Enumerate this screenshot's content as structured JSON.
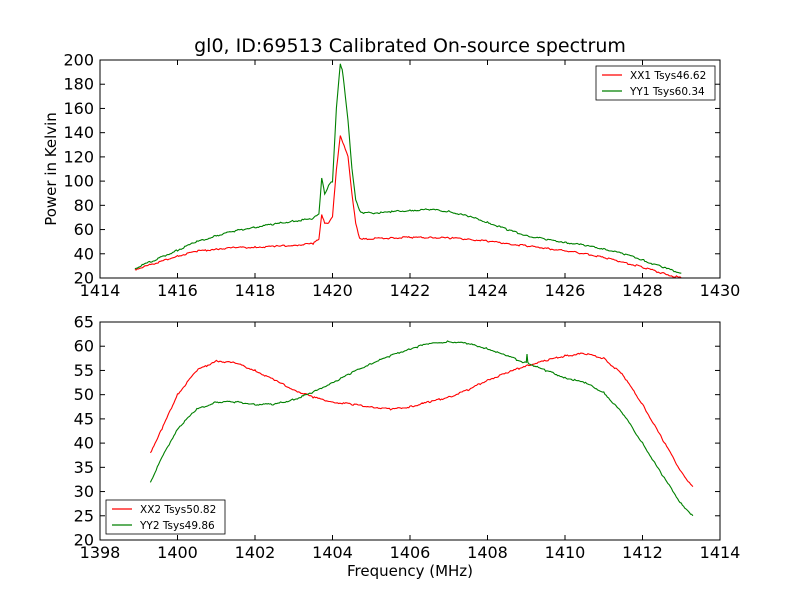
{
  "chart_data": [
    {
      "type": "line",
      "title": "gl0, ID:69513 Calibrated On-source spectrum",
      "xlabel": "",
      "ylabel": "Power in Kelvin",
      "xlim": [
        1414,
        1430
      ],
      "ylim": [
        20,
        200
      ],
      "xticks": [
        1414,
        1416,
        1418,
        1420,
        1422,
        1424,
        1426,
        1428,
        1430
      ],
      "yticks": [
        20,
        40,
        60,
        80,
        100,
        120,
        140,
        160,
        180,
        200
      ],
      "legend": "top-right",
      "series": [
        {
          "name": "XX1 Tsys46.62",
          "color": "#ff0000",
          "x": [
            1414.9,
            1415.5,
            1416.0,
            1416.5,
            1417.0,
            1417.5,
            1418.0,
            1418.5,
            1419.0,
            1419.5,
            1419.65,
            1419.72,
            1419.8,
            1419.9,
            1420.0,
            1420.1,
            1420.2,
            1420.3,
            1420.4,
            1420.5,
            1420.6,
            1420.7,
            1420.8,
            1421.0,
            1421.5,
            1422.0,
            1422.5,
            1423.0,
            1423.5,
            1424.0,
            1424.5,
            1425.0,
            1425.5,
            1426.0,
            1426.5,
            1427.0,
            1427.5,
            1428.0,
            1428.5,
            1429.0
          ],
          "y": [
            27,
            33,
            38,
            42,
            44,
            45,
            45.5,
            46,
            47,
            48.5,
            52,
            73,
            65,
            66,
            70,
            110,
            137,
            130,
            120,
            90,
            65,
            53,
            52,
            52.5,
            53,
            53.5,
            53.5,
            53,
            52,
            50.5,
            48.5,
            46.5,
            44.5,
            42.5,
            40,
            37,
            33,
            29,
            24,
            20
          ]
        },
        {
          "name": "YY1 Tsys60.34",
          "color": "#008000",
          "x": [
            1414.9,
            1415.5,
            1416.0,
            1416.5,
            1417.0,
            1417.5,
            1418.0,
            1418.5,
            1419.0,
            1419.5,
            1419.65,
            1419.72,
            1419.8,
            1419.9,
            1420.0,
            1420.1,
            1420.2,
            1420.25,
            1420.3,
            1420.4,
            1420.5,
            1420.6,
            1420.7,
            1420.8,
            1421.0,
            1421.5,
            1422.0,
            1422.5,
            1423.0,
            1423.5,
            1424.0,
            1424.5,
            1425.0,
            1425.5,
            1426.0,
            1426.5,
            1427.0,
            1427.5,
            1428.0,
            1428.5,
            1429.0
          ],
          "y": [
            28,
            36,
            43,
            50,
            55,
            59,
            62,
            64.5,
            67,
            69,
            73,
            102,
            90,
            96,
            100,
            160,
            197,
            192,
            180,
            150,
            110,
            85,
            75,
            74,
            73.5,
            74.5,
            76,
            76.5,
            75,
            71,
            66,
            60,
            55,
            52,
            49.5,
            47,
            44,
            40,
            35,
            29,
            24
          ]
        }
      ]
    },
    {
      "type": "line",
      "title": "",
      "xlabel": "Frequency (MHz)",
      "ylabel": "",
      "xlim": [
        1398,
        1414
      ],
      "ylim": [
        20,
        65
      ],
      "xticks": [
        1398,
        1400,
        1402,
        1404,
        1406,
        1408,
        1410,
        1412,
        1414
      ],
      "yticks": [
        20,
        25,
        30,
        35,
        40,
        45,
        50,
        55,
        60,
        65
      ],
      "legend": "bottom-left",
      "series": [
        {
          "name": "XX2 Tsys50.82",
          "color": "#ff0000",
          "x": [
            1399.3,
            1399.6,
            1400.0,
            1400.5,
            1401.0,
            1401.5,
            1402.0,
            1402.5,
            1403.0,
            1403.5,
            1404.0,
            1404.5,
            1405.0,
            1405.5,
            1406.0,
            1406.5,
            1407.0,
            1407.5,
            1408.0,
            1408.5,
            1409.0,
            1409.5,
            1410.0,
            1410.5,
            1411.0,
            1411.5,
            1412.0,
            1412.5,
            1413.0,
            1413.3
          ],
          "y": [
            38,
            43,
            50,
            55,
            57,
            56.5,
            55,
            53,
            51,
            49.5,
            48.5,
            48,
            47.5,
            47,
            47.5,
            48.5,
            49.5,
            51,
            53,
            54.5,
            56,
            57,
            58,
            58.5,
            57.5,
            54,
            48,
            41,
            34,
            31
          ]
        },
        {
          "name": "YY2 Tsys49.86",
          "color": "#008000",
          "x": [
            1399.3,
            1399.6,
            1400.0,
            1400.5,
            1401.0,
            1401.5,
            1402.0,
            1402.5,
            1403.0,
            1403.5,
            1404.0,
            1404.5,
            1405.0,
            1405.5,
            1406.0,
            1406.5,
            1407.0,
            1407.5,
            1408.0,
            1408.5,
            1409.0,
            1409.02,
            1409.04,
            1409.5,
            1410.0,
            1410.5,
            1411.0,
            1411.5,
            1412.0,
            1412.5,
            1413.0,
            1413.3
          ],
          "y": [
            32,
            37,
            43,
            47,
            48.5,
            48.5,
            48,
            48,
            49,
            50.5,
            52.5,
            54.5,
            56.5,
            58,
            59.5,
            60.5,
            61,
            60.5,
            59.5,
            58,
            56.5,
            58.5,
            56.5,
            55,
            53.5,
            52.5,
            50.5,
            46,
            40,
            33.5,
            27.5,
            25
          ]
        }
      ]
    }
  ]
}
